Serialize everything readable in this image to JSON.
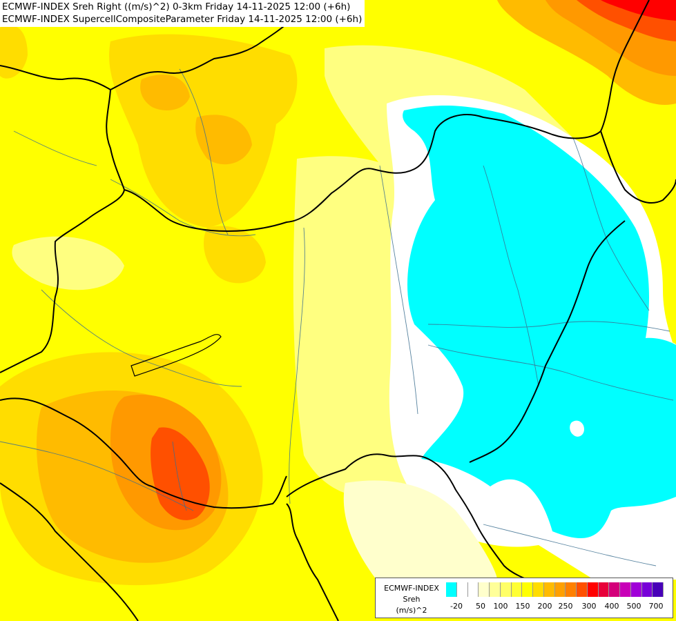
{
  "header": {
    "line1": "ECMWF-INDEX Sreh Right ((m/s)^2) 0-3km Friday 14-11-2025 12:00 (+6h)",
    "line2": "ECMWF-INDEX SupercellCompositeParameter Friday 14-11-2025 12:00 (+6h)"
  },
  "legend": {
    "title": "ECMWF-INDEX",
    "variable": "Sreh",
    "unit": "(m/s)^2",
    "swatches": [
      {
        "name": "cyan",
        "color": "#00ffff"
      },
      {
        "name": "white-1",
        "color": "#ffffff"
      },
      {
        "name": "white-2",
        "color": "#ffffff"
      },
      {
        "name": "cream",
        "color": "#ffffcc"
      },
      {
        "name": "light-yellow",
        "color": "#ffff99"
      },
      {
        "name": "yellow-1",
        "color": "#ffff66"
      },
      {
        "name": "yellow-2",
        "color": "#ffff33"
      },
      {
        "name": "yellow-3",
        "color": "#ffff00"
      },
      {
        "name": "gold",
        "color": "#ffdd00"
      },
      {
        "name": "amber",
        "color": "#ffbb00"
      },
      {
        "name": "orange-1",
        "color": "#ffa000"
      },
      {
        "name": "orange-2",
        "color": "#ff8000"
      },
      {
        "name": "orange-red",
        "color": "#ff5000"
      },
      {
        "name": "red",
        "color": "#ff0000"
      },
      {
        "name": "crimson",
        "color": "#e8003a"
      },
      {
        "name": "magenta-red",
        "color": "#d4007a"
      },
      {
        "name": "magenta",
        "color": "#c800b8"
      },
      {
        "name": "purple-1",
        "color": "#a000d8"
      },
      {
        "name": "purple-2",
        "color": "#7800d8"
      },
      {
        "name": "indigo",
        "color": "#4800b8"
      }
    ],
    "ticks": [
      "-20",
      "50",
      "100",
      "150",
      "200",
      "250",
      "300",
      "400",
      "500",
      "700"
    ]
  },
  "colors": {
    "background": "#ffff00",
    "cyan": "#00ffff",
    "cream": "#ffffbb",
    "lemon": "#ffff80",
    "gold": "#ffdd00",
    "amber": "#ffbb00",
    "orange": "#ff9900",
    "orange_red": "#ff5000",
    "red": "#ff0000",
    "border": "#000000",
    "river": "#3b6e8f"
  }
}
